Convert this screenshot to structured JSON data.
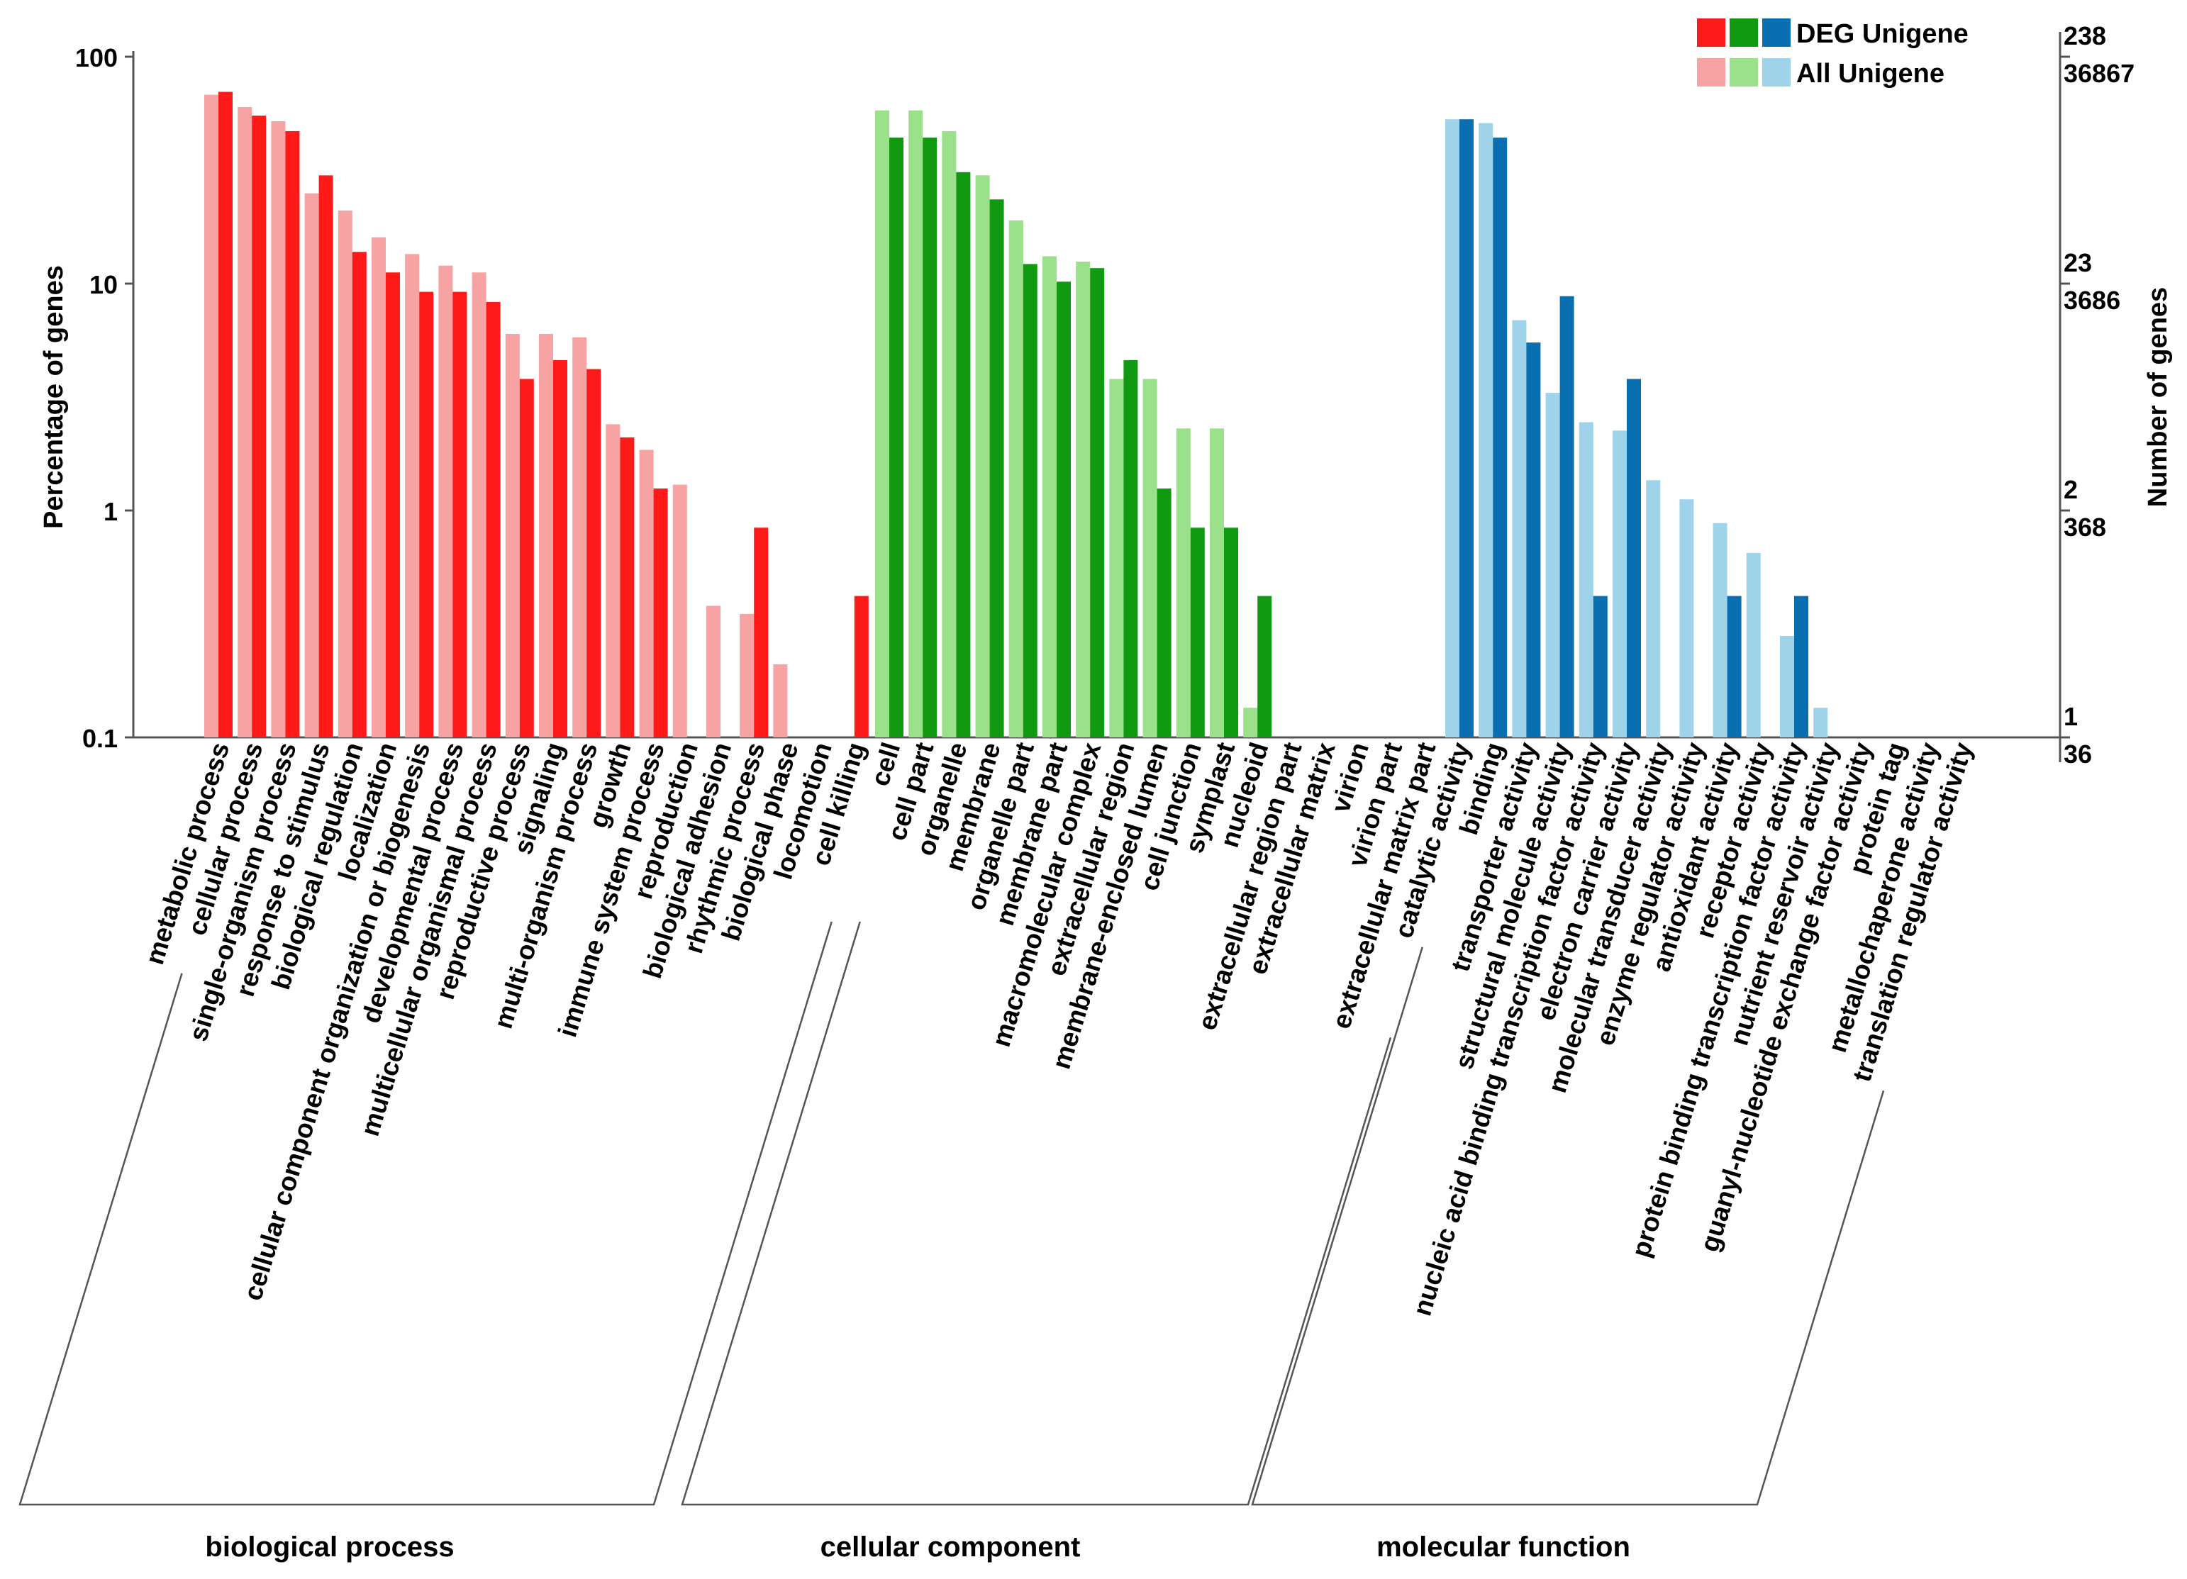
{
  "chart_data": {
    "type": "bar",
    "title": "",
    "ylabel_left": "Percentage of genes",
    "ylabel_right": "Number of genes",
    "yscale": "log",
    "ylim": [
      0.1,
      100
    ],
    "left_ticks": [
      {
        "value": 100,
        "label": "100"
      },
      {
        "value": 10,
        "label": "10"
      },
      {
        "value": 1,
        "label": "1"
      },
      {
        "value": 0.1,
        "label": "0.1"
      }
    ],
    "right_ticks": [
      {
        "value": 100,
        "deg": "238",
        "all": "36867"
      },
      {
        "value": 10,
        "deg": "23",
        "all": "3686"
      },
      {
        "value": 1,
        "deg": "2",
        "all": "368"
      },
      {
        "value": 0.1,
        "deg": "1",
        "all": "36"
      }
    ],
    "legend": {
      "position": "top-right",
      "entries": [
        {
          "label": "DEG Unigene",
          "colors": [
            "#ff1a1a",
            "#119a11",
            "#0a6fb0"
          ]
        },
        {
          "label": "All Unigene",
          "colors": [
            "#f7a3a3",
            "#9be08a",
            "#9fd3ea"
          ]
        }
      ]
    },
    "groups": [
      {
        "name": "biological process",
        "deg_color": "#ff1a1a",
        "all_color": "#f7a3a3",
        "categories": [
          "metabolic process",
          "cellular process",
          "single-organism process",
          "response to stimulus",
          "biological regulation",
          "localization",
          "cellular component organization or biogenesis",
          "developmental process",
          "multicellular organismal process",
          "reproductive process",
          "signaling",
          "multi-organism process",
          "growth",
          "immune system process",
          "reproduction",
          "biological adhesion",
          "rhythmic process",
          "biological phase",
          "locomotion",
          "cell killing"
        ],
        "series": [
          {
            "name": "All Unigene",
            "values": [
              68,
              60,
              52,
              25,
              21,
              16,
              13.5,
              12,
              11.2,
              6,
              6,
              5.8,
              2.4,
              1.85,
              1.3,
              0.38,
              0.35,
              0.21,
              null,
              null
            ]
          },
          {
            "name": "DEG Unigene",
            "values": [
              70,
              55,
              47,
              30,
              13.8,
              11.2,
              9.2,
              9.2,
              8.3,
              3.8,
              4.6,
              4.2,
              2.1,
              1.25,
              null,
              null,
              0.84,
              null,
              null,
              0.42
            ]
          }
        ]
      },
      {
        "name": "cellular component",
        "deg_color": "#119a11",
        "all_color": "#9be08a",
        "categories": [
          "cell",
          "cell part",
          "organelle",
          "membrane",
          "organelle part",
          "membrane part",
          "macromolecular complex",
          "extracellular region",
          "membrane-enclosed lumen",
          "cell junction",
          "symplast",
          "nucleoid",
          "extracellular region part",
          "extracellular matrix",
          "virion",
          "virion part",
          "extracellular matrix part"
        ],
        "series": [
          {
            "name": "All Unigene",
            "values": [
              58,
              58,
              47,
              30,
              19,
              13.2,
              12.5,
              3.8,
              3.8,
              2.3,
              2.3,
              0.135,
              null,
              null,
              null,
              null,
              null
            ]
          },
          {
            "name": "DEG Unigene",
            "values": [
              44,
              44,
              31,
              23.5,
              12.2,
              10.2,
              11.7,
              4.6,
              1.25,
              0.84,
              0.84,
              0.42,
              null,
              null,
              null,
              null,
              null
            ]
          }
        ]
      },
      {
        "name": "molecular function",
        "deg_color": "#0a6fb0",
        "all_color": "#9fd3ea",
        "categories": [
          "catalytic activity",
          "binding",
          "transporter activity",
          "structural molecule activity",
          "nucleic acid binding transcription factor activity",
          "electron carrier activity",
          "molecular transducer activity",
          "enzyme regulator activity",
          "antioxidant activity",
          "receptor activity",
          "protein binding transcription factor activity",
          "nutrient reservoir activity",
          "guanyl-nucleotide exchange factor activity",
          "protein tag",
          "metallochaperone activity",
          "translation regulator activity"
        ],
        "series": [
          {
            "name": "All Unigene",
            "values": [
              53,
              51,
              6.9,
              3.3,
              2.45,
              2.25,
              1.36,
              1.12,
              0.88,
              0.65,
              0.28,
              0.135,
              null,
              null,
              null,
              null
            ]
          },
          {
            "name": "DEG Unigene",
            "values": [
              53,
              44,
              5.5,
              8.8,
              0.42,
              3.8,
              null,
              null,
              0.42,
              null,
              0.42,
              null,
              null,
              null,
              null,
              null
            ]
          }
        ]
      }
    ]
  }
}
